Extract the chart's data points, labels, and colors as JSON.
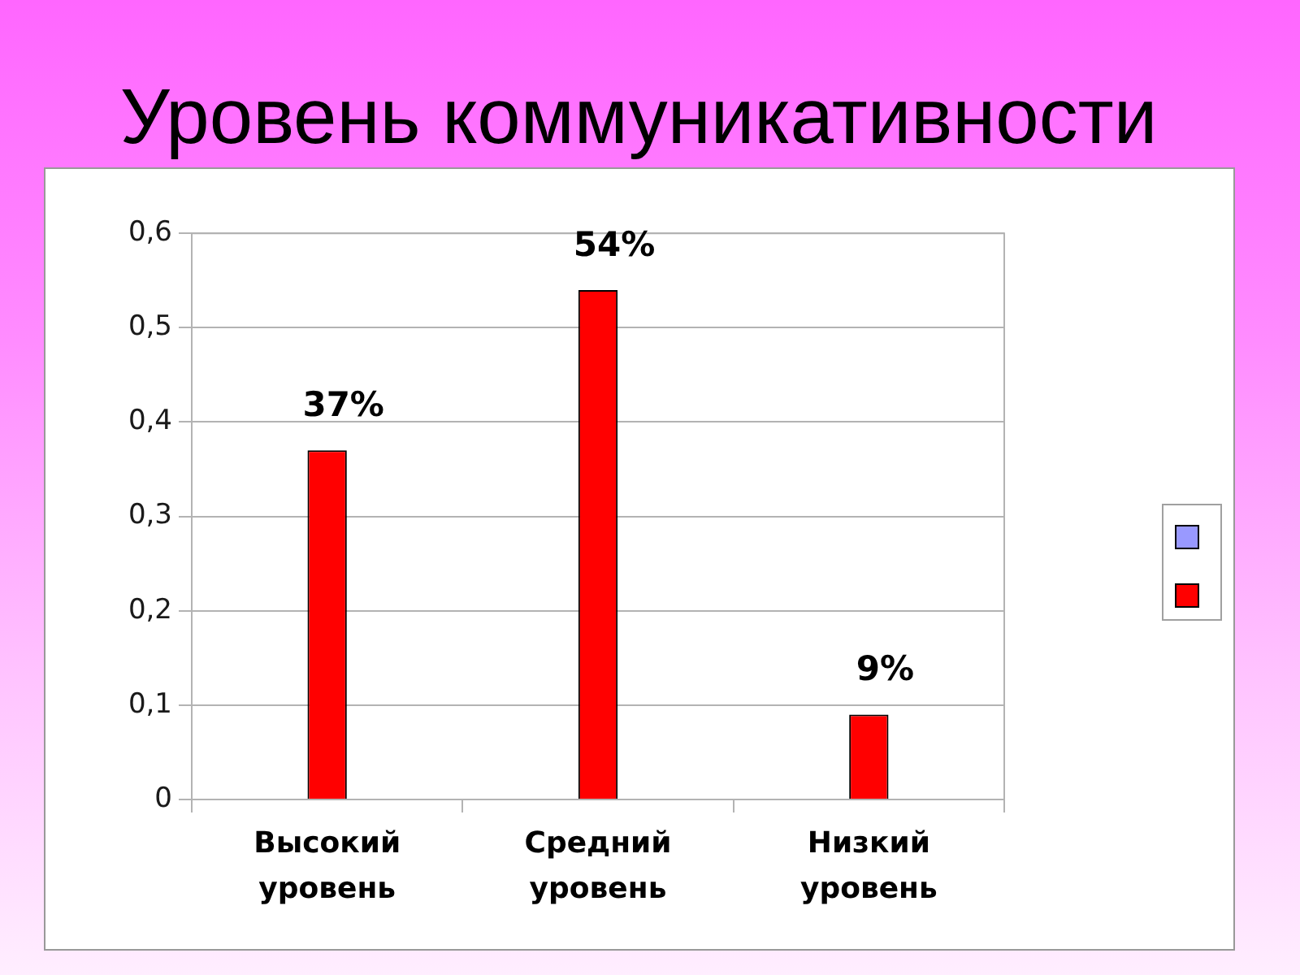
{
  "chart_data": {
    "type": "bar",
    "title": "Уровень коммуникативности",
    "categories": [
      "Высокий уровень",
      "Средний уровень",
      "Низкий уровень"
    ],
    "series": [
      {
        "color": "#9999ff",
        "values": [
          null,
          null,
          null
        ]
      },
      {
        "color": "#ff0000",
        "values": [
          0.37,
          0.54,
          0.09
        ],
        "value_labels": [
          "37%",
          "54%",
          "9%"
        ]
      }
    ],
    "ylim": [
      0,
      0.6
    ],
    "yticks": [
      0,
      {
        "value": 0.1,
        "label": "0,1"
      },
      {
        "value": 0.2,
        "label": "0,2"
      },
      {
        "value": 0.3,
        "label": "0,3"
      },
      {
        "value": 0.4,
        "label": "0,4"
      },
      {
        "value": 0.5,
        "label": "0,5"
      },
      {
        "value": 0.6,
        "label": "0,6"
      }
    ],
    "grid": "y"
  }
}
